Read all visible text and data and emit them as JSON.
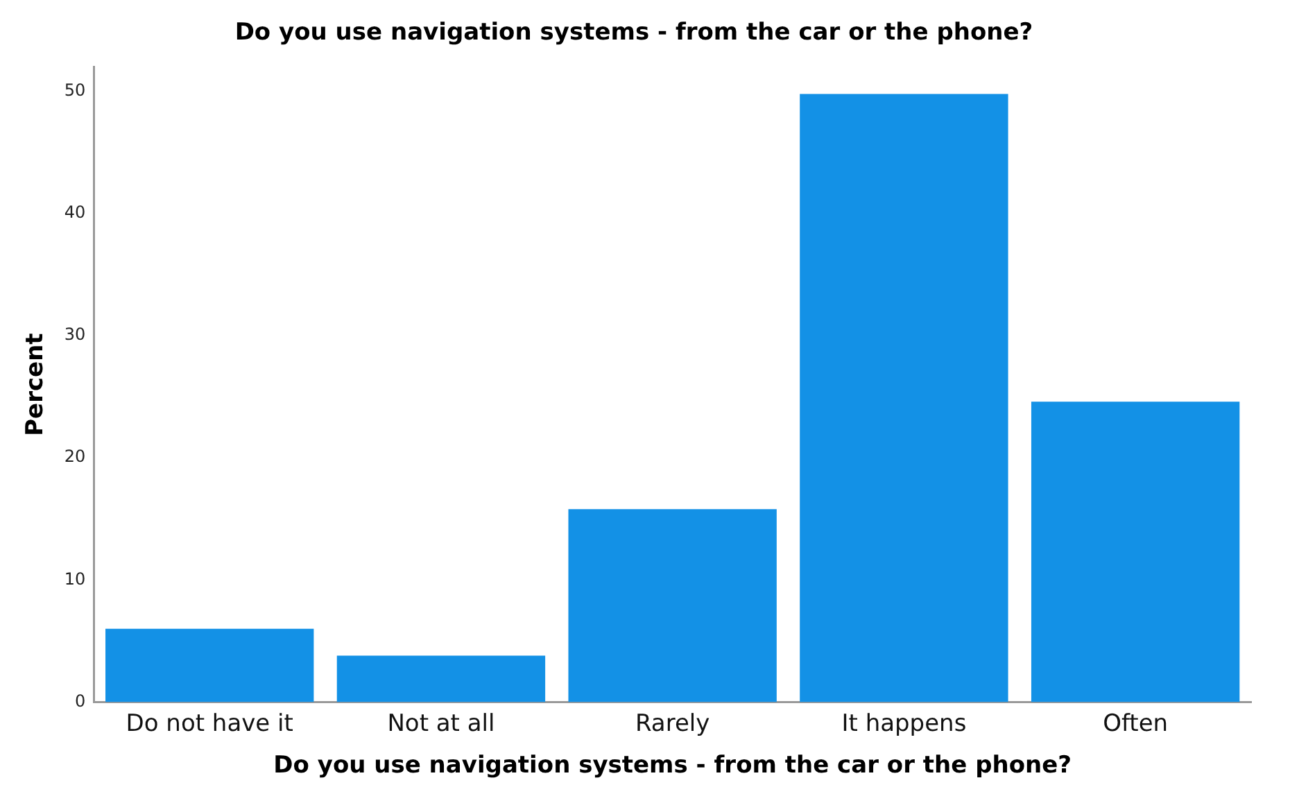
{
  "chart_data": {
    "type": "bar",
    "title": "Do you use navigation systems - from the car or the phone?",
    "xlabel": "Do you use navigation systems - from the car or the phone?",
    "ylabel": "Percent",
    "categories": [
      "Do not have it",
      "Not at all",
      "Rarely",
      "It happens",
      "Often"
    ],
    "values": [
      6.0,
      3.8,
      15.8,
      49.8,
      24.6
    ],
    "color": "#1391e6",
    "ylim": [
      0,
      52
    ],
    "yticks": [
      0,
      10,
      20,
      30,
      40,
      50
    ],
    "grid": false,
    "legend": false
  }
}
